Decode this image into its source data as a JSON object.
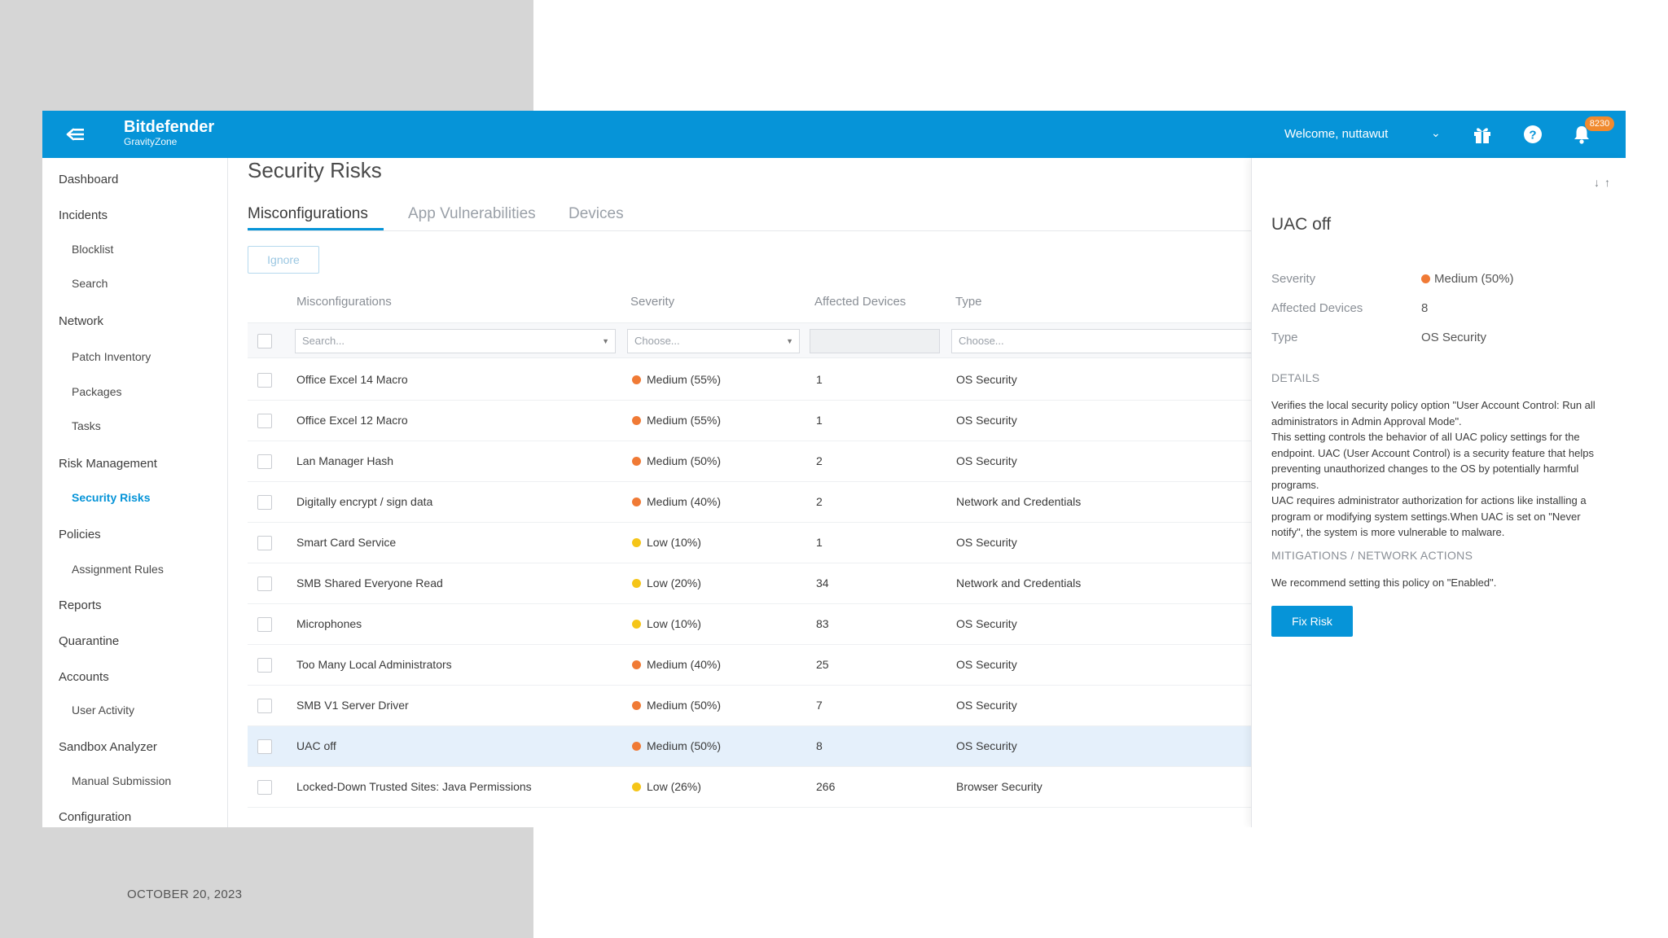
{
  "slide": {
    "date": "OCTOBER 20, 2023"
  },
  "header": {
    "brand_name": "Bitdefender",
    "brand_sub": "GravityZone",
    "welcome": "Welcome, nuttawut",
    "notification_count": "8230",
    "accent_color": "#0694d8"
  },
  "sidebar": {
    "items": [
      {
        "label": "Dashboard",
        "level": "top"
      },
      {
        "label": "Incidents",
        "level": "top"
      },
      {
        "label": "Blocklist",
        "level": "sub"
      },
      {
        "label": "Search",
        "level": "sub"
      },
      {
        "label": "Network",
        "level": "top"
      },
      {
        "label": "Patch Inventory",
        "level": "sub"
      },
      {
        "label": "Packages",
        "level": "sub"
      },
      {
        "label": "Tasks",
        "level": "sub"
      },
      {
        "label": "Risk Management",
        "level": "top"
      },
      {
        "label": "Security Risks",
        "level": "sub",
        "active": true
      },
      {
        "label": "Policies",
        "level": "top"
      },
      {
        "label": "Assignment Rules",
        "level": "sub"
      },
      {
        "label": "Reports",
        "level": "top"
      },
      {
        "label": "Quarantine",
        "level": "top"
      },
      {
        "label": "Accounts",
        "level": "top"
      },
      {
        "label": "User Activity",
        "level": "sub"
      },
      {
        "label": "Sandbox Analyzer",
        "level": "top"
      },
      {
        "label": "Manual Submission",
        "level": "sub"
      },
      {
        "label": "Configuration",
        "level": "top"
      }
    ]
  },
  "main": {
    "title": "Security Risks",
    "tabs": [
      {
        "label": "Misconfigurations",
        "active": true
      },
      {
        "label": "App Vulnerabilities"
      },
      {
        "label": "Devices"
      }
    ],
    "ignore_label": "Ignore",
    "columns": {
      "name": "Misconfigurations",
      "severity": "Severity",
      "affected": "Affected Devices",
      "type": "Type"
    },
    "filters": {
      "search_placeholder": "Search...",
      "severity_placeholder": "Choose...",
      "type_placeholder": "Choose..."
    },
    "rows": [
      {
        "name": "Office Excel 14 Macro",
        "severity": "Medium (55%)",
        "level": "medium",
        "affected": "1",
        "type": "OS Security"
      },
      {
        "name": "Office Excel 12 Macro",
        "severity": "Medium (55%)",
        "level": "medium",
        "affected": "1",
        "type": "OS Security"
      },
      {
        "name": "Lan Manager Hash",
        "severity": "Medium (50%)",
        "level": "medium",
        "affected": "2",
        "type": "OS Security"
      },
      {
        "name": "Digitally encrypt / sign data",
        "severity": "Medium (40%)",
        "level": "medium",
        "affected": "2",
        "type": "Network and Credentials"
      },
      {
        "name": "Smart Card Service",
        "severity": "Low (10%)",
        "level": "low",
        "affected": "1",
        "type": "OS Security"
      },
      {
        "name": "SMB Shared Everyone Read",
        "severity": "Low (20%)",
        "level": "low",
        "affected": "34",
        "type": "Network and Credentials"
      },
      {
        "name": "Microphones",
        "severity": "Low (10%)",
        "level": "low",
        "affected": "83",
        "type": "OS Security"
      },
      {
        "name": "Too Many Local Administrators",
        "severity": "Medium (40%)",
        "level": "medium",
        "affected": "25",
        "type": "OS Security"
      },
      {
        "name": "SMB V1 Server Driver",
        "severity": "Medium (50%)",
        "level": "medium",
        "affected": "7",
        "type": "OS Security"
      },
      {
        "name": "UAC off",
        "severity": "Medium (50%)",
        "level": "medium",
        "affected": "8",
        "type": "OS Security",
        "selected": true
      },
      {
        "name": "Locked-Down Trusted Sites: Java Permissions",
        "severity": "Low (26%)",
        "level": "low",
        "affected": "266",
        "type": "Browser Security"
      }
    ],
    "severity_colors": {
      "medium": "#f07a35",
      "low": "#f5c518"
    }
  },
  "detail": {
    "title": "UAC off",
    "severity_label": "Severity",
    "severity_value": "Medium (50%)",
    "affected_label": "Affected Devices",
    "affected_value": "8",
    "type_label": "Type",
    "type_value": "OS Security",
    "details_heading": "DETAILS",
    "details_text": "Verifies the local security policy option \"User Account Control: Run all administrators in Admin Approval Mode\".\nThis setting controls the behavior of all UAC policy settings for the endpoint. UAC (User Account Control) is a security feature that helps preventing unauthorized changes to the OS by potentially harmful programs.\nUAC requires administrator authorization for actions like installing a program or modifying system settings.When UAC is set on \"Never notify\", the system is more vulnerable to malware.",
    "mitigations_heading": "MITIGATIONS / NETWORK ACTIONS",
    "mitigations_text": "We recommend setting this policy on \"Enabled\".",
    "fix_label": "Fix Risk"
  }
}
